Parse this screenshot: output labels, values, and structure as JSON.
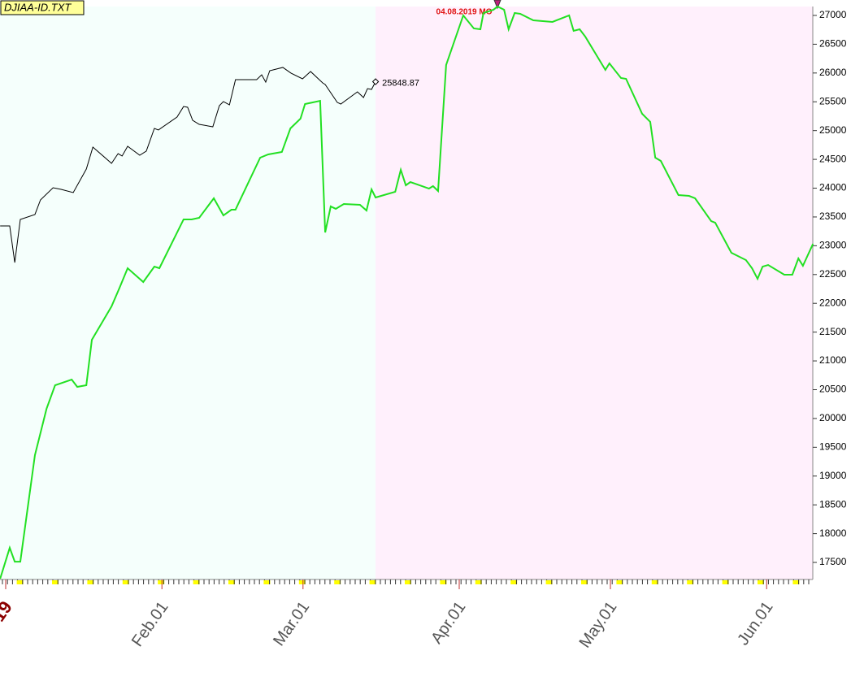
{
  "chart_data": {
    "type": "line",
    "title": "DJIAA-ID.TXT",
    "annotation": "04.08.2019 MO",
    "xlim": [
      -1.13,
      160.16
    ],
    "ylim": [
      17204,
      27155
    ],
    "xticks": [
      {
        "value": 0,
        "label": "19"
      },
      {
        "value": 31,
        "label": "Feb.01"
      },
      {
        "value": 59,
        "label": "Mar.01"
      },
      {
        "value": 90,
        "label": "Apr.01"
      },
      {
        "value": 120,
        "label": "May.01"
      },
      {
        "value": 151,
        "label": "Jun.01"
      }
    ],
    "yticks": [
      17500,
      18000,
      18500,
      19000,
      19500,
      20000,
      20500,
      21000,
      21500,
      22000,
      22500,
      23000,
      23500,
      24000,
      24500,
      25000,
      25500,
      26000,
      26500,
      27000
    ],
    "series": [
      {
        "color": "#000000",
        "x": [
          -1.1,
          0.8,
          1.8,
          2.9,
          5.8,
          6.9,
          9.4,
          11.0,
          13.4,
          16.0,
          17.3,
          21.0,
          22.3,
          23.1,
          24.2,
          26.6,
          27.9,
          29.5,
          30.3,
          34.0,
          35.3,
          36.1,
          37.1,
          38.4,
          41.1,
          42.4,
          43.2,
          44.4,
          45.6,
          49.8,
          50.8,
          51.6,
          52.4,
          55.0,
          56.6,
          58.9,
          60.5,
          62.9,
          63.4,
          65.8,
          66.5,
          69.8,
          71.0,
          71.8,
          72.6,
          73.4
        ],
        "values": [
          23344,
          23344,
          22708,
          23457,
          23542,
          23796,
          24007,
          23979,
          23923,
          24332,
          24713,
          24431,
          24600,
          24558,
          24727,
          24572,
          24643,
          25038,
          25010,
          25235,
          25418,
          25405,
          25179,
          25108,
          25066,
          25433,
          25504,
          25447,
          25885,
          25885,
          25969,
          25842,
          26040,
          26097,
          25998,
          25899,
          26026,
          25828,
          25800,
          25489,
          25461,
          25673,
          25574,
          25729,
          25715,
          25848.87
        ]
      },
      {
        "color": "#22e022",
        "x": [
          -1.1,
          0.8,
          1.8,
          2.9,
          5.8,
          8.1,
          9.8,
          13.1,
          14.2,
          16.0,
          17.1,
          21.0,
          22.6,
          24.2,
          27.3,
          29.5,
          30.5,
          35.3,
          36.9,
          38.4,
          41.3,
          43.2,
          44.8,
          45.6,
          50.5,
          52.1,
          54.8,
          56.5,
          58.5,
          59.4,
          62.4,
          63.4,
          64.5,
          65.5,
          67.1,
          70.3,
          71.6,
          72.6,
          73.4,
          77.3,
          78.4,
          79.4,
          80.3,
          84.0,
          84.8,
          85.8,
          87.4,
          90.8,
          92.9,
          94.2,
          94.8,
          96.8,
          97.6,
          98.9,
          99.8,
          101.0,
          102.1,
          104.7,
          108.5,
          111.8,
          112.7,
          113.9,
          115.0,
          119.0,
          119.8,
          122.1,
          123.1,
          126.3,
          127.9,
          128.9,
          130.0,
          133.5,
          135.6,
          136.8,
          140.0,
          140.8,
          144.0,
          146.9,
          148.1,
          149.2,
          150.2,
          151.3,
          154.5,
          156.1,
          157.3,
          158.2,
          160.2
        ],
        "values": [
          17217,
          17754,
          17513,
          17513,
          19363,
          20167,
          20577,
          20676,
          20549,
          20577,
          21367,
          21946,
          22271,
          22610,
          22370,
          22638,
          22610,
          23457,
          23457,
          23485,
          23824,
          23527,
          23626,
          23626,
          24530,
          24586,
          24628,
          25038,
          25207,
          25461,
          25517,
          23231,
          23683,
          23641,
          23725,
          23711,
          23612,
          23979,
          23838,
          23937,
          24318,
          24050,
          24106,
          23993,
          24035,
          23951,
          26139,
          27000,
          26774,
          26760,
          27042,
          27099,
          27155,
          27099,
          26760,
          27042,
          27028,
          26915,
          26887,
          27000,
          26732,
          26760,
          26633,
          26054,
          26167,
          25913,
          25899,
          25292,
          25151,
          24530,
          24473,
          23880,
          23866,
          23824,
          23428,
          23400,
          22878,
          22751,
          22610,
          22426,
          22638,
          22666,
          22497,
          22497,
          22779,
          22652,
          23033
        ]
      }
    ]
  }
}
